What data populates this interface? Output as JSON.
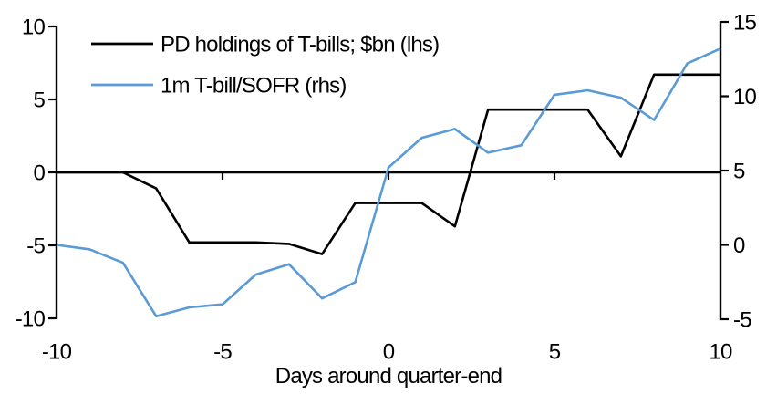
{
  "figure": {
    "x_axis_title": "Days around quarter-end"
  },
  "legend": {
    "items": [
      {
        "label": "PD holdings of T-bills; $bn (lhs)",
        "color": "#000000"
      },
      {
        "label": "1m T-bill/SOFR (rhs)",
        "color": "#5B9BD5"
      }
    ]
  },
  "colors": {
    "pd_line": "#000000",
    "sofr_line": "#5B9BD5",
    "axis": "#000000",
    "background": "#ffffff"
  },
  "chart_data": {
    "type": "line",
    "title": "",
    "xlabel": "Days around quarter-end",
    "x": [
      -10,
      -9,
      -8,
      -7,
      -6,
      -5,
      -4,
      -3,
      -2,
      -1,
      0,
      1,
      2,
      3,
      4,
      5,
      6,
      7,
      8,
      9,
      10
    ],
    "series": [
      {
        "name": "PD holdings of T-bills; $bn (lhs)",
        "axis": "left",
        "color": "#000000",
        "values": [
          0,
          0,
          0,
          -1.1,
          -4.8,
          -4.8,
          -4.8,
          -4.9,
          -5.6,
          -2.1,
          -2.1,
          -2.1,
          -3.7,
          4.3,
          4.3,
          4.3,
          4.3,
          1.1,
          6.7,
          6.7,
          6.7
        ]
      },
      {
        "name": "1m T-bill/SOFR (rhs)",
        "axis": "right",
        "color": "#5B9BD5",
        "values": [
          0,
          -0.3,
          -1.2,
          -4.8,
          -4.2,
          -4.0,
          -2.0,
          -1.3,
          -3.6,
          -2.5,
          5.2,
          7.2,
          7.8,
          6.2,
          6.7,
          10.1,
          10.4,
          9.9,
          8.4,
          12.2,
          13.2
        ]
      }
    ],
    "left_axis": {
      "ticks": [
        10,
        5,
        0,
        -5,
        -10
      ],
      "range": [
        -10,
        10
      ]
    },
    "right_axis": {
      "ticks": [
        15,
        10,
        5,
        0,
        -5
      ],
      "range": [
        -5,
        15
      ]
    },
    "x_ticks": [
      -10,
      -5,
      0,
      5,
      10
    ],
    "x_range": [
      -10,
      10
    ],
    "zero_line": true,
    "grid": false,
    "legend_position": "top-left"
  }
}
